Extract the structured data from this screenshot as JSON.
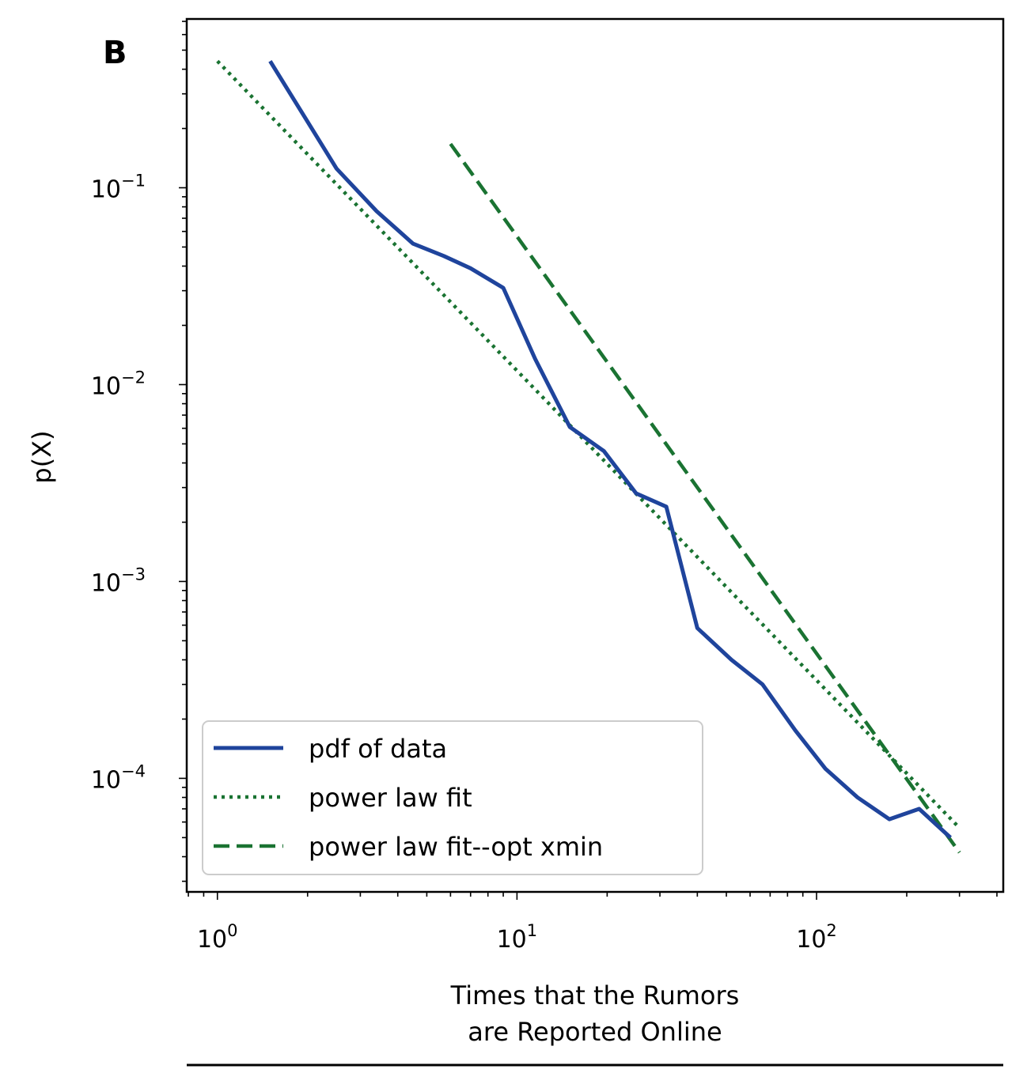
{
  "chart_data": {
    "type": "line",
    "panel_label": "B",
    "ylabel": "p(X)",
    "xlabel_lines": [
      "Times that the Rumors",
      "are Reported Online"
    ],
    "xscale": "log",
    "yscale": "log",
    "xlim": [
      0.79,
      420
    ],
    "ylim": [
      2.65e-05,
      0.72
    ],
    "x_ticks": [
      {
        "value": 1,
        "base": "10",
        "exp": "0"
      },
      {
        "value": 10,
        "base": "10",
        "exp": "1"
      },
      {
        "value": 100,
        "base": "10",
        "exp": "2"
      }
    ],
    "y_ticks": [
      {
        "value": 0.1,
        "base": "10",
        "exp": "−1"
      },
      {
        "value": 0.01,
        "base": "10",
        "exp": "−2"
      },
      {
        "value": 0.001,
        "base": "10",
        "exp": "−3"
      },
      {
        "value": 0.0001,
        "base": "10",
        "exp": "−4"
      }
    ],
    "legend_position": "lower-left",
    "series": [
      {
        "name": "pdf of data",
        "style": "solid",
        "color": "#1f449c",
        "x": [
          1.5,
          2.5,
          3.4,
          4.5,
          5.7,
          7,
          9,
          11.5,
          15,
          19.5,
          25,
          31.5,
          40,
          52,
          66,
          85,
          107,
          137,
          175,
          220,
          280
        ],
        "y": [
          0.44,
          0.125,
          0.076,
          0.052,
          0.045,
          0.039,
          0.031,
          0.0135,
          0.0061,
          0.0046,
          0.0028,
          0.0024,
          0.00058,
          0.0004,
          0.0003,
          0.000175,
          0.000112,
          8e-05,
          6.2e-05,
          7e-05,
          5e-05
        ]
      },
      {
        "name": "power law fit",
        "style": "dotted",
        "color": "#1a7332",
        "x": [
          1,
          300
        ],
        "y": [
          0.44,
          5.6e-05
        ]
      },
      {
        "name": "power law fit--opt xmin",
        "style": "dashed",
        "color": "#1a7332",
        "x": [
          6,
          300
        ],
        "y": [
          0.167,
          4.2e-05
        ]
      }
    ]
  }
}
